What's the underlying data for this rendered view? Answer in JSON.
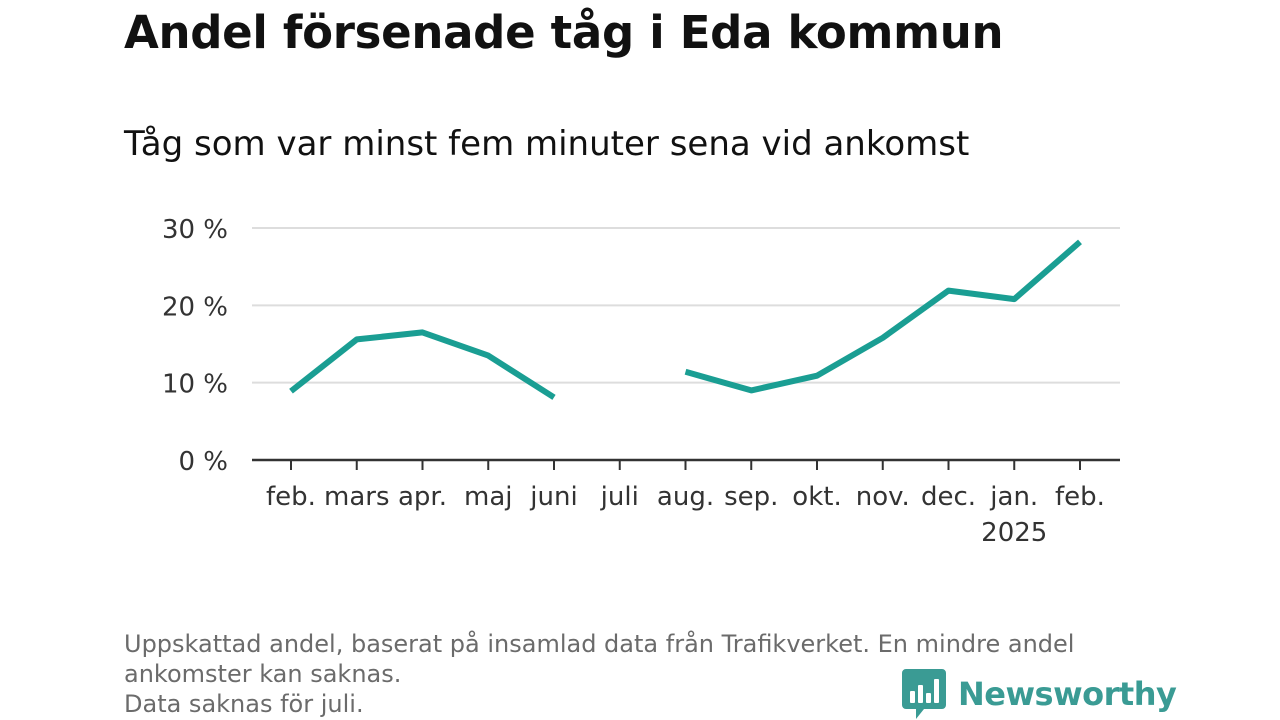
{
  "title": "Andel försenade tåg i Eda kommun",
  "subtitle": "Tåg som var minst fem minuter sena vid ankomst",
  "footnote": [
    "Uppskattad andel, baserat på insamlad data från Trafikverket. En mindre andel",
    "ankomster kan saknas.",
    "Data saknas för juli."
  ],
  "brand": {
    "name": "Newsworthy",
    "icon": "newsworthy-logo-icon",
    "color": "#3a9b94"
  },
  "chart_data": {
    "type": "line",
    "title": "Andel försenade tåg i Eda kommun",
    "subtitle": "Tåg som var minst fem minuter sena vid ankomst",
    "categories": [
      "feb.",
      "mars",
      "apr.",
      "maj",
      "juni",
      "juli",
      "aug.",
      "sep.",
      "okt.",
      "nov.",
      "dec.",
      "jan.",
      "feb."
    ],
    "year_label": {
      "category_index": 11,
      "text": "2025"
    },
    "series": [
      {
        "color": "#1a9e93",
        "values": [
          8.9,
          15.6,
          16.5,
          13.5,
          8.1,
          null,
          11.4,
          9.0,
          10.9,
          15.8,
          21.9,
          20.8,
          28.2
        ]
      }
    ],
    "yticks": [
      0,
      10,
      20,
      30
    ],
    "ytick_labels": [
      "0 %",
      "10 %",
      "20 %",
      "30 %"
    ],
    "ylim": [
      0,
      30
    ],
    "grid": true,
    "colors": {
      "line": "#1a9e93",
      "grid": "#dddddd",
      "axis": "#333333"
    }
  }
}
